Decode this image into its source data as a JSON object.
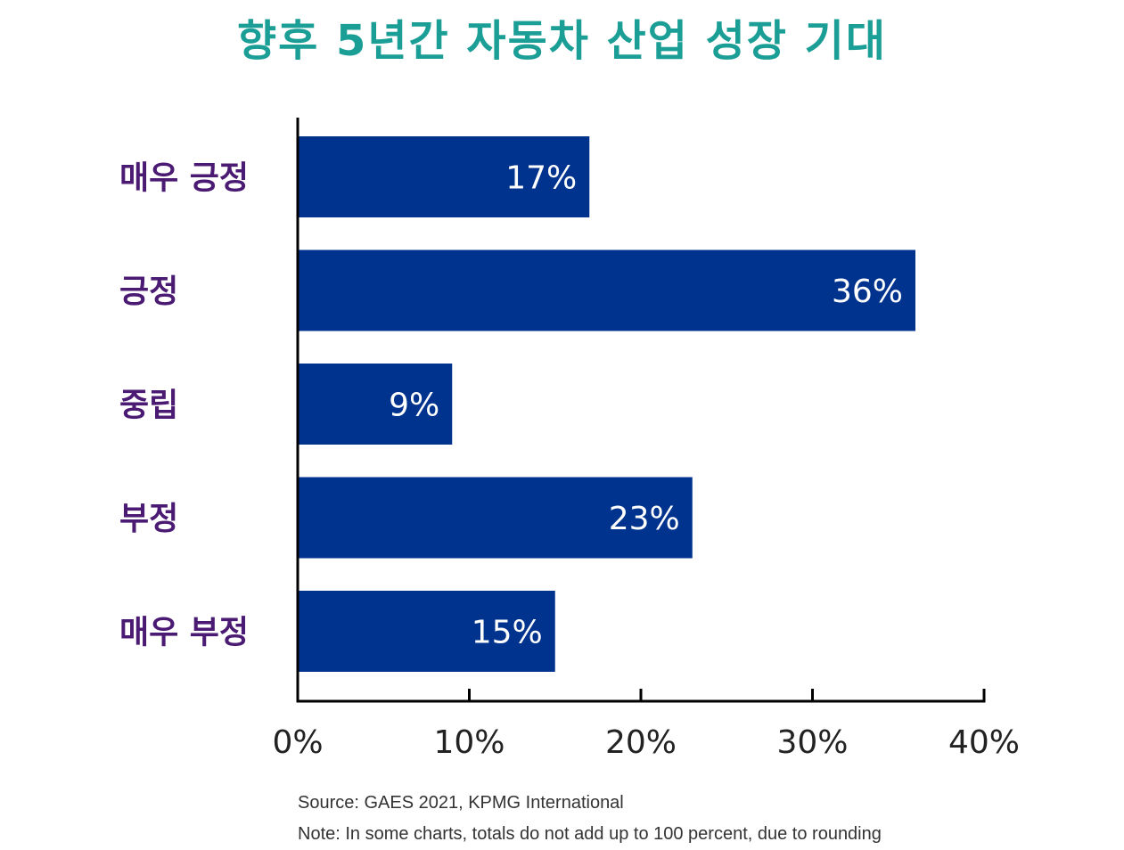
{
  "chart_data": {
    "type": "bar",
    "orientation": "horizontal",
    "title": "향후 5년간 자동차 산업 성장 기대",
    "categories": [
      "매우 긍정",
      "긍정",
      "중립",
      "부정",
      "매우 부정"
    ],
    "values": [
      17,
      36,
      9,
      23,
      15
    ],
    "value_labels": [
      "17%",
      "36%",
      "9%",
      "23%",
      "15%"
    ],
    "xlim": [
      0,
      40
    ],
    "xticks": [
      0,
      10,
      20,
      30,
      40
    ],
    "xtick_labels": [
      "0%",
      "10%",
      "20%",
      "30%",
      "40%"
    ],
    "xlabel": "",
    "ylabel": "",
    "grid": false,
    "legend": "none",
    "colors": {
      "bar": "#00338d",
      "title": "#1a9e96",
      "category_label": "#4b1a73",
      "bar_label": "#ffffff",
      "axis": "#000000"
    }
  },
  "notes": {
    "source": "Source: GAES 2021, KPMG International",
    "rounding": "Note: In some charts, totals do not add up to 100 percent, due to rounding"
  }
}
